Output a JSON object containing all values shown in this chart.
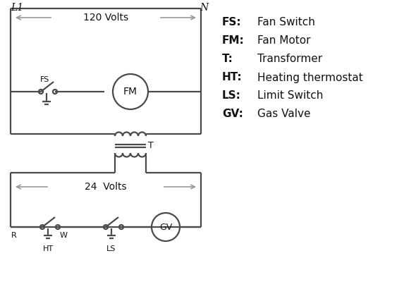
{
  "bg_color": "#ffffff",
  "line_color": "#4a4a4a",
  "arrow_color": "#999999",
  "text_color": "#111111",
  "legend": {
    "FS": "Fan Switch",
    "FM": "Fan Motor",
    "T": "Transformer",
    "HT": "Heating thermostat",
    "LS": "Limit Switch",
    "GV": "Gas Valve"
  },
  "L1_label": "L1",
  "N_label": "N",
  "v120_label": "120 Volts",
  "v24_label": "24  Volts",
  "T_label": "T"
}
